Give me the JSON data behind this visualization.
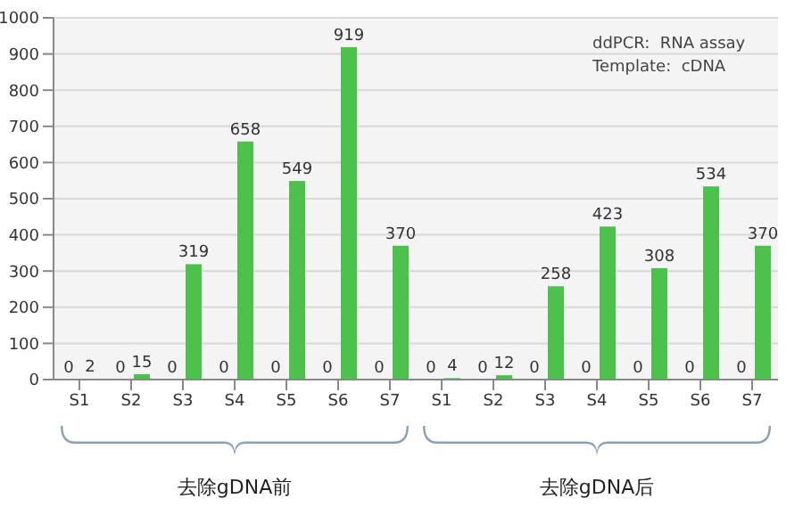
{
  "chart_data": {
    "type": "bar",
    "categories": [
      "S1",
      "S2",
      "S3",
      "S4",
      "S5",
      "S6",
      "S7",
      "S1",
      "S2",
      "S3",
      "S4",
      "S5",
      "S6",
      "S7"
    ],
    "series": [
      {
        "color": "#2e8b2e",
        "values": [
          0,
          0,
          0,
          0,
          0,
          0,
          0,
          0,
          0,
          0,
          0,
          0,
          0,
          0
        ]
      },
      {
        "color": "#4cc24c",
        "values": [
          2,
          15,
          319,
          658,
          549,
          919,
          370,
          4,
          12,
          258,
          423,
          308,
          534,
          370
        ]
      }
    ],
    "ylim": [
      0,
      1000
    ],
    "yticks": [
      0,
      100,
      200,
      300,
      400,
      500,
      600,
      700,
      800,
      900,
      1000
    ],
    "grid": "y",
    "data_labels": true,
    "annotations": [
      "ddPCR:  RNA assay",
      "Template:  cDNA",
      "去除gDNA前",
      "去除gDNA后"
    ]
  }
}
